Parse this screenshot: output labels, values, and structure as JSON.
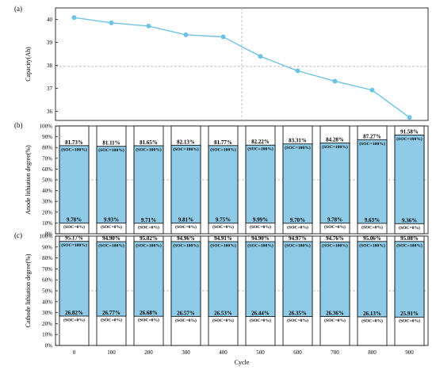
{
  "chart_data": [
    {
      "panel": "(a)",
      "type": "line",
      "ylabel": "Capacity(Ah)",
      "yticks": [
        "36",
        "37",
        "38",
        "39",
        "40"
      ],
      "ylim": [
        35.6,
        40.5
      ],
      "xlim": [
        -50,
        950
      ],
      "x": [
        0,
        100,
        200,
        300,
        400,
        500,
        600,
        700,
        800,
        900
      ],
      "values": [
        40.08,
        39.85,
        39.71,
        39.33,
        39.24,
        38.39,
        37.76,
        37.31,
        36.92,
        35.73
      ],
      "reference_lines": {
        "x": 450,
        "y": 37.95
      },
      "color": "#6ec2e4"
    },
    {
      "panel": "(b)",
      "type": "bar",
      "ylabel": "Anode lithiation degree(%)",
      "yticks": [
        "0%",
        "10%",
        "20%",
        "30%",
        "40%",
        "50%",
        "60%",
        "70%",
        "80%",
        "90%",
        "100%"
      ],
      "ylim": [
        0,
        100
      ],
      "categories": [
        "0",
        "100",
        "200",
        "300",
        "400",
        "500",
        "600",
        "700",
        "800",
        "900"
      ],
      "high": [
        81.73,
        81.11,
        81.65,
        82.13,
        81.77,
        82.22,
        83.31,
        84.28,
        87.27,
        91.58
      ],
      "low": [
        9.78,
        9.93,
        9.71,
        9.81,
        9.75,
        9.99,
        9.7,
        9.78,
        9.63,
        9.36
      ],
      "high_labels": [
        "81.73%",
        "81.11%",
        "81.65%",
        "82.13%",
        "81.77%",
        "82.22%",
        "83.31%",
        "84.28%",
        "87.27%",
        "91.58%"
      ],
      "low_labels": [
        "9.78%",
        "9.93%",
        "9.71%",
        "9.81%",
        "9.75%",
        "9.99%",
        "9.70%",
        "9.78%",
        "9.63%",
        "9.36%"
      ],
      "top_state": "(SOC=100%)",
      "bottom_state": "(SOC=0%)",
      "reference_line_y": 50,
      "color": "#8fcbe7"
    },
    {
      "panel": "(c)",
      "type": "bar",
      "ylabel": "Cathode lithiation degree(%)",
      "xlabel": "Cycle",
      "yticks": [
        "0%",
        "10%",
        "20%",
        "30%",
        "40%",
        "50%",
        "60%",
        "70%",
        "80%",
        "90%",
        "100%"
      ],
      "ylim": [
        0,
        100
      ],
      "categories": [
        "0",
        "100",
        "200",
        "300",
        "400",
        "500",
        "600",
        "700",
        "800",
        "900"
      ],
      "high": [
        95.17,
        94.9,
        95.02,
        94.96,
        94.91,
        94.9,
        94.97,
        94.76,
        95.06,
        95.08
      ],
      "low": [
        26.82,
        26.77,
        26.68,
        26.57,
        26.53,
        26.44,
        26.35,
        26.36,
        26.13,
        25.91
      ],
      "high_labels": [
        "95.17%",
        "94.90%",
        "95.02%",
        "94.96%",
        "94.91%",
        "94.90%",
        "94.97%",
        "94.76%",
        "95.06%",
        "95.08%"
      ],
      "low_labels": [
        "26.82%",
        "26.77%",
        "26.68%",
        "26.57%",
        "26.53%",
        "26.44%",
        "26.35%",
        "26.36%",
        "26.13%",
        "25.91%"
      ],
      "top_state": "(SOC=100%)",
      "bottom_state": "(SOC=0%)",
      "reference_line_y": 50,
      "color": "#8fcbe7"
    }
  ]
}
